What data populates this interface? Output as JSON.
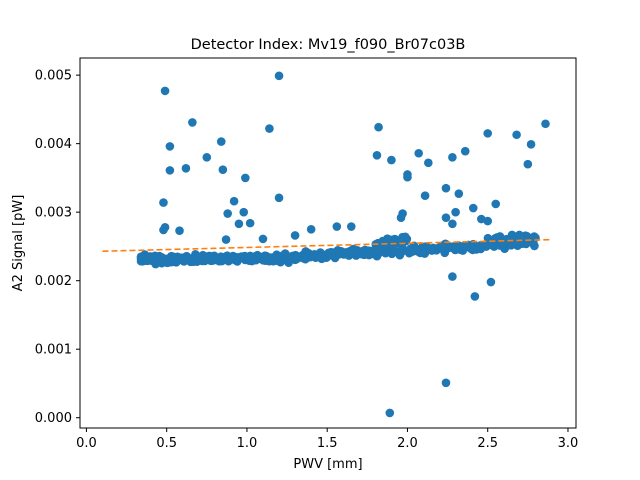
{
  "chart_data": {
    "type": "scatter",
    "title": "Detector Index: Mv19_f090_Br07c03B",
    "xlabel": "PWV [mm]",
    "ylabel": "A2 Signal [pW]",
    "xlim": [
      -0.04,
      3.05
    ],
    "ylim": [
      -0.00015,
      0.00525
    ],
    "xticks": [
      0.0,
      0.5,
      1.0,
      1.5,
      2.0,
      2.5,
      3.0
    ],
    "xtick_labels": [
      "0.0",
      "0.5",
      "1.0",
      "1.5",
      "2.0",
      "2.5",
      "3.0"
    ],
    "yticks": [
      0.0,
      0.001,
      0.002,
      0.003,
      0.004,
      0.005
    ],
    "ytick_labels": [
      "0.000",
      "0.001",
      "0.002",
      "0.003",
      "0.004",
      "0.005"
    ],
    "series": [
      {
        "name": "data",
        "kind": "scatter",
        "color": "#1f77b4",
        "outliers": [
          [
            0.49,
            0.00477
          ],
          [
            1.2,
            0.00499
          ],
          [
            0.66,
            0.00431
          ],
          [
            1.14,
            0.00422
          ],
          [
            0.84,
            0.00403
          ],
          [
            0.52,
            0.00396
          ],
          [
            0.75,
            0.0038
          ],
          [
            0.62,
            0.00364
          ],
          [
            0.52,
            0.00361
          ],
          [
            0.85,
            0.00362
          ],
          [
            0.99,
            0.0035
          ],
          [
            1.2,
            0.00321
          ],
          [
            0.48,
            0.00314
          ],
          [
            0.92,
            0.00316
          ],
          [
            0.88,
            0.00298
          ],
          [
            0.98,
            0.003
          ],
          [
            0.49,
            0.00278
          ],
          [
            0.48,
            0.00274
          ],
          [
            0.58,
            0.00273
          ],
          [
            0.95,
            0.00283
          ],
          [
            1.02,
            0.00284
          ],
          [
            1.82,
            0.00424
          ],
          [
            1.81,
            0.00383
          ],
          [
            1.9,
            0.00376
          ],
          [
            2.07,
            0.00386
          ],
          [
            2.0,
            0.00355
          ],
          [
            2.0,
            0.00351
          ],
          [
            2.11,
            0.00324
          ],
          [
            2.13,
            0.00372
          ],
          [
            2.28,
            0.0038
          ],
          [
            2.36,
            0.00389
          ],
          [
            2.24,
            0.00335
          ],
          [
            2.32,
            0.00327
          ],
          [
            2.5,
            0.00415
          ],
          [
            2.68,
            0.00413
          ],
          [
            2.77,
            0.00399
          ],
          [
            2.86,
            0.00429
          ],
          [
            2.75,
            0.0037
          ],
          [
            2.41,
            0.00306
          ],
          [
            2.3,
            0.003
          ],
          [
            2.5,
            0.00287
          ],
          [
            2.46,
            0.0029
          ],
          [
            2.55,
            0.00312
          ],
          [
            1.97,
            0.00298
          ],
          [
            1.96,
            0.00292
          ],
          [
            1.56,
            0.00279
          ],
          [
            1.65,
            0.00279
          ],
          [
            1.3,
            0.00266
          ],
          [
            1.4,
            0.00275
          ],
          [
            2.24,
            0.00292
          ],
          [
            2.28,
            0.00283
          ],
          [
            2.28,
            0.00206
          ],
          [
            2.42,
            0.00177
          ],
          [
            2.52,
            0.00198
          ],
          [
            2.24,
            0.00051
          ],
          [
            1.89,
            7e-05
          ],
          [
            0.87,
            0.0026
          ],
          [
            1.1,
            0.00261
          ]
        ]
      },
      {
        "name": "fit",
        "kind": "line",
        "style": "dashed",
        "color": "#ff7f0e",
        "x": [
          0.1,
          2.9
        ],
        "y": [
          0.00243,
          0.0026
        ]
      }
    ]
  }
}
